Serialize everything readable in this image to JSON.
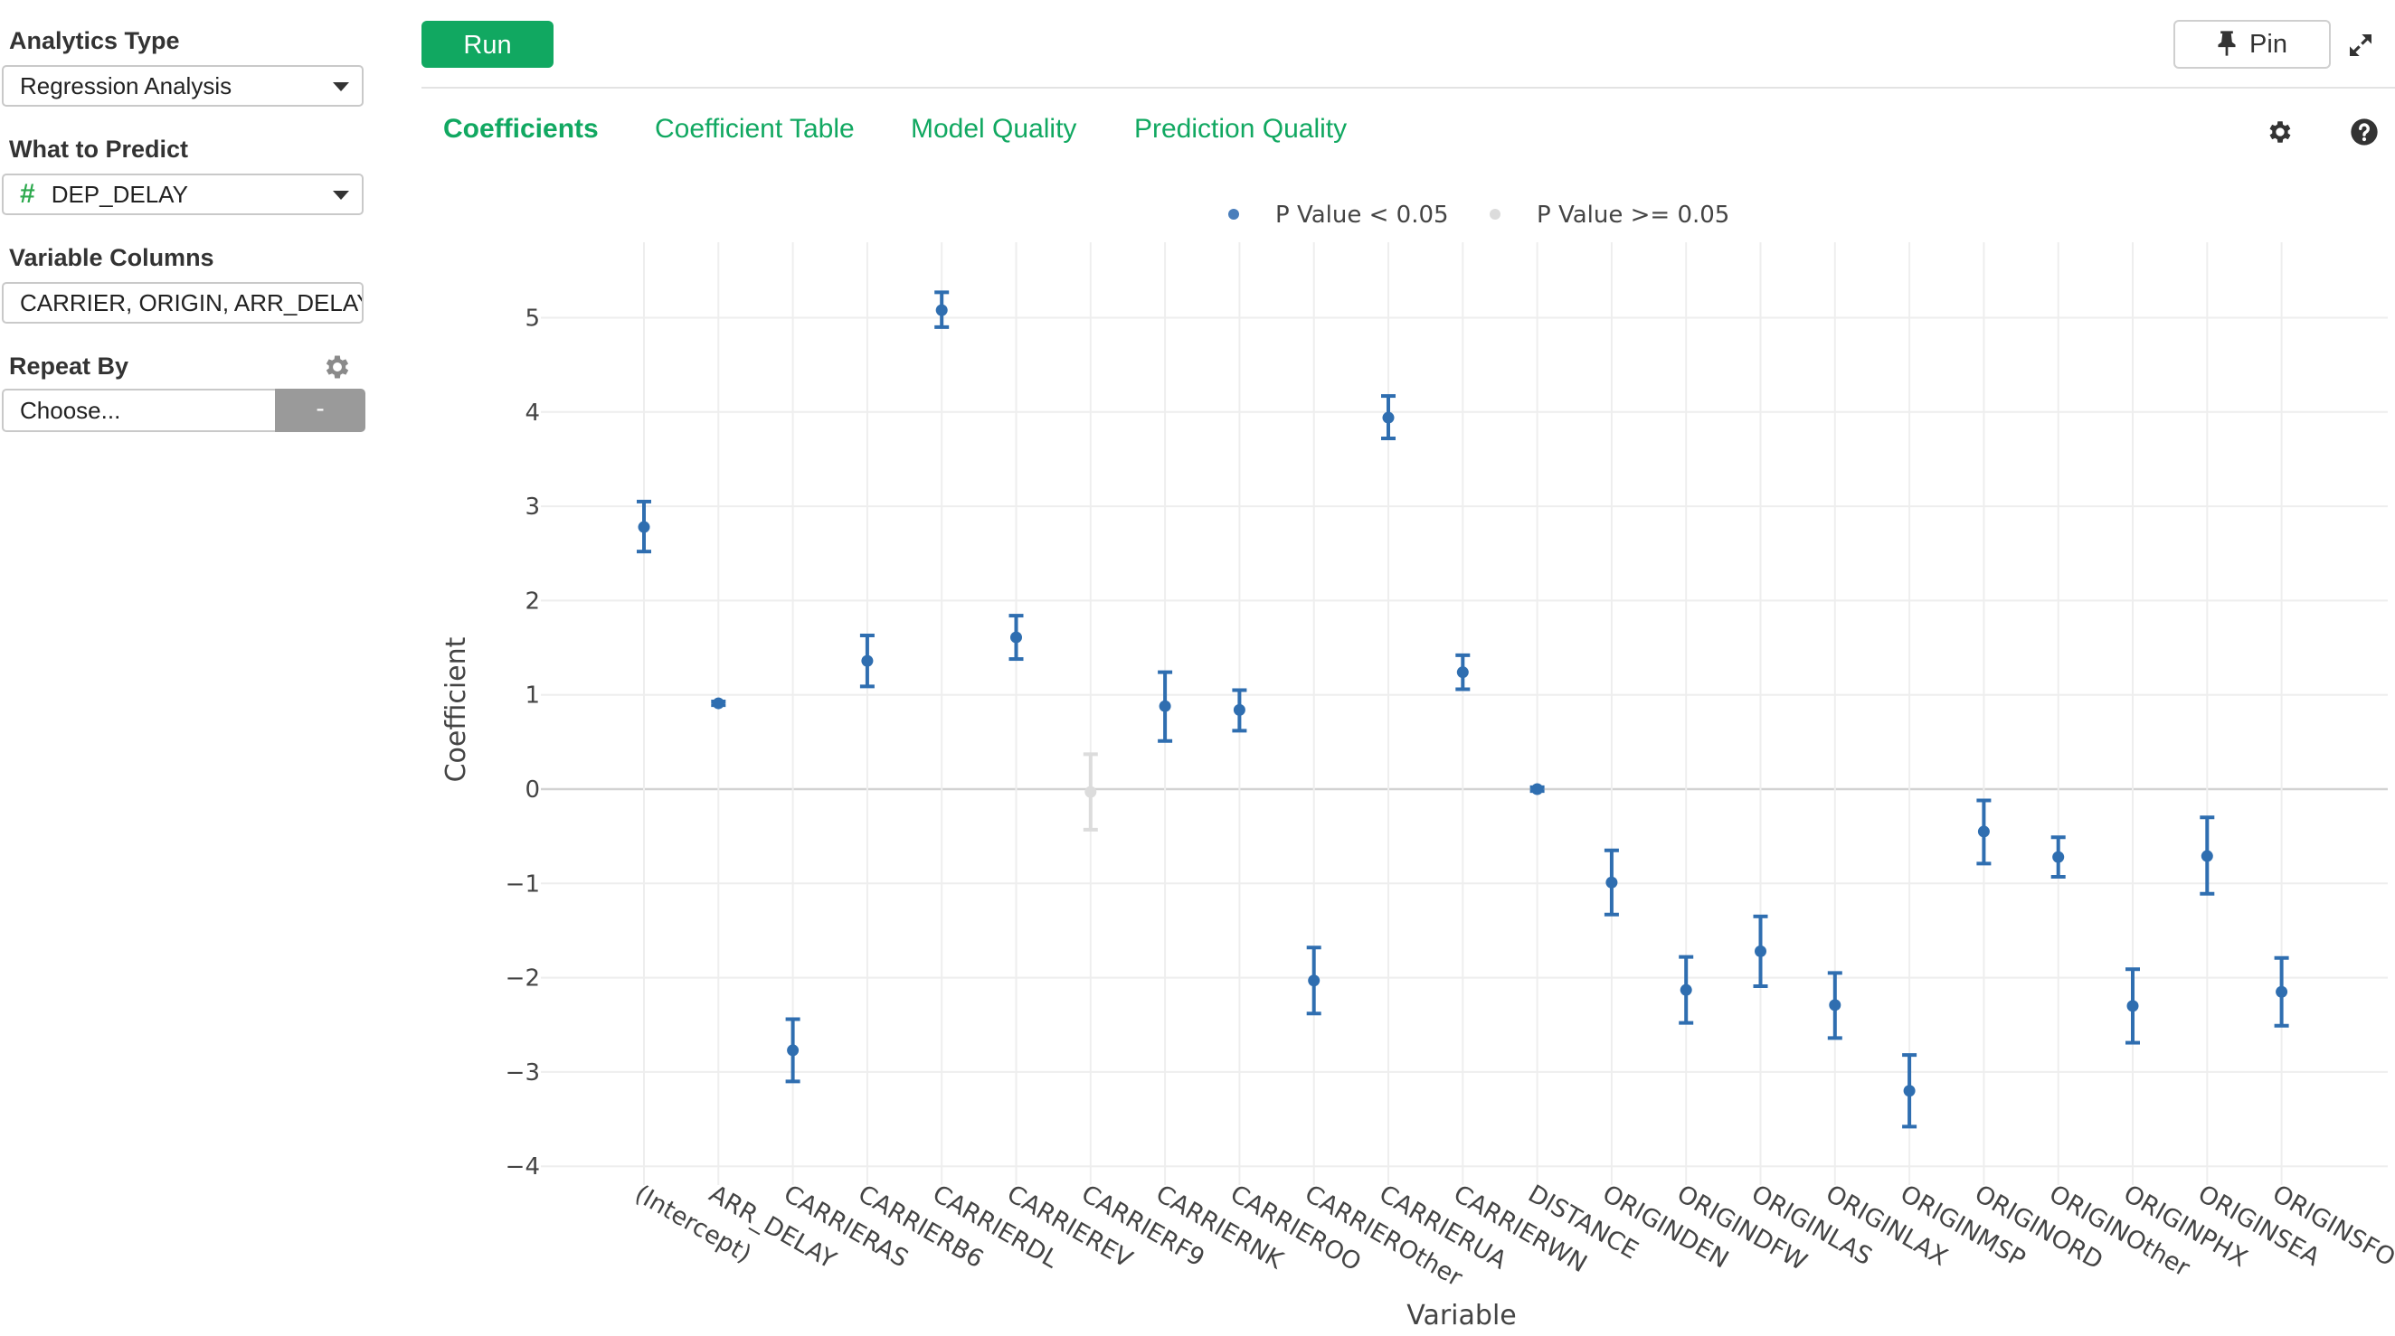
{
  "sidebar": {
    "analytics_type_label": "Analytics Type",
    "analytics_type_value": "Regression Analysis",
    "predict_label": "What to Predict",
    "predict_value": "DEP_DELAY",
    "variable_columns_label": "Variable Columns",
    "variable_columns_value": "CARRIER, ORIGIN, ARR_DELAY",
    "repeat_by_label": "Repeat By",
    "repeat_by_placeholder": "Choose...",
    "repeat_by_button": "-"
  },
  "toolbar": {
    "run_label": "Run",
    "pin_label": "Pin"
  },
  "tabs": [
    {
      "label": "Coefficients",
      "active": true
    },
    {
      "label": "Coefficient Table",
      "active": false
    },
    {
      "label": "Model Quality",
      "active": false
    },
    {
      "label": "Prediction Quality",
      "active": false
    }
  ],
  "colors": {
    "accent": "#11a861",
    "significant": "#2f6eb0",
    "significant_legend": "#4a7ebb",
    "not_significant": "#dcdcdc"
  },
  "icons": [
    "gear-icon",
    "pin-icon",
    "expand-icon",
    "help-icon",
    "chevron-down-icon"
  ],
  "chart_data": {
    "type": "scatter",
    "xlabel": "Variable",
    "ylabel": "Coefficient",
    "ylim": [
      -4.2,
      5.8
    ],
    "yticks": [
      -4,
      -3,
      -2,
      -1,
      0,
      1,
      2,
      3,
      4,
      5
    ],
    "ytick_labels": [
      "−4",
      "−3",
      "−2",
      "−1",
      "0",
      "1",
      "2",
      "3",
      "4",
      "5"
    ],
    "grid": true,
    "legend": {
      "placement": "top-center",
      "items": [
        {
          "label": "P Value < 0.05",
          "significant": true
        },
        {
          "label": "P Value >= 0.05",
          "significant": false
        }
      ]
    },
    "categories": [
      "(Intercept)",
      "ARR_DELAY",
      "CARRIERAS",
      "CARRIERB6",
      "CARRIERDL",
      "CARRIEREV",
      "CARRIERF9",
      "CARRIERNK",
      "CARRIEROO",
      "CARRIEROther",
      "CARRIERUA",
      "CARRIERWN",
      "DISTANCE",
      "ORIGINDEN",
      "ORIGINDFW",
      "ORIGINLAS",
      "ORIGINLAX",
      "ORIGINMSP",
      "ORIGINORD",
      "ORIGINOther",
      "ORIGINPHX",
      "ORIGINSEA",
      "ORIGINSFO"
    ],
    "points": [
      {
        "x": "(Intercept)",
        "y": 2.78,
        "lo": 2.52,
        "hi": 3.05,
        "significant": true
      },
      {
        "x": "ARR_DELAY",
        "y": 0.91,
        "lo": 0.89,
        "hi": 0.93,
        "significant": true
      },
      {
        "x": "CARRIERAS",
        "y": -2.77,
        "lo": -3.1,
        "hi": -2.44,
        "significant": true
      },
      {
        "x": "CARRIERB6",
        "y": 1.36,
        "lo": 1.09,
        "hi": 1.63,
        "significant": true
      },
      {
        "x": "CARRIERDL",
        "y": 5.08,
        "lo": 4.9,
        "hi": 5.27,
        "significant": true
      },
      {
        "x": "CARRIEREV",
        "y": 1.61,
        "lo": 1.38,
        "hi": 1.84,
        "significant": true
      },
      {
        "x": "CARRIERF9",
        "y": -0.03,
        "lo": -0.43,
        "hi": 0.37,
        "significant": false
      },
      {
        "x": "CARRIERNK",
        "y": 0.88,
        "lo": 0.51,
        "hi": 1.24,
        "significant": true
      },
      {
        "x": "CARRIEROO",
        "y": 0.84,
        "lo": 0.62,
        "hi": 1.05,
        "significant": true
      },
      {
        "x": "CARRIEROther",
        "y": -2.03,
        "lo": -2.38,
        "hi": -1.68,
        "significant": true
      },
      {
        "x": "CARRIERUA",
        "y": 3.94,
        "lo": 3.72,
        "hi": 4.17,
        "significant": true
      },
      {
        "x": "CARRIERWN",
        "y": 1.24,
        "lo": 1.06,
        "hi": 1.42,
        "significant": true
      },
      {
        "x": "DISTANCE",
        "y": 0.0,
        "lo": -0.02,
        "hi": 0.02,
        "significant": true
      },
      {
        "x": "ORIGINDEN",
        "y": -0.99,
        "lo": -1.33,
        "hi": -0.65,
        "significant": true
      },
      {
        "x": "ORIGINDFW",
        "y": -2.13,
        "lo": -2.48,
        "hi": -1.78,
        "significant": true
      },
      {
        "x": "ORIGINLAS",
        "y": -1.72,
        "lo": -2.09,
        "hi": -1.35,
        "significant": true
      },
      {
        "x": "ORIGINLAX",
        "y": -2.29,
        "lo": -2.64,
        "hi": -1.95,
        "significant": true
      },
      {
        "x": "ORIGINMSP",
        "y": -3.2,
        "lo": -3.58,
        "hi": -2.82,
        "significant": true
      },
      {
        "x": "ORIGINORD",
        "y": -0.45,
        "lo": -0.79,
        "hi": -0.12,
        "significant": true
      },
      {
        "x": "ORIGINOther",
        "y": -0.72,
        "lo": -0.93,
        "hi": -0.51,
        "significant": true
      },
      {
        "x": "ORIGINPHX",
        "y": -2.3,
        "lo": -2.69,
        "hi": -1.91,
        "significant": true
      },
      {
        "x": "ORIGINSEA",
        "y": -0.71,
        "lo": -1.11,
        "hi": -0.3,
        "significant": true
      },
      {
        "x": "ORIGINSFO",
        "y": -2.15,
        "lo": -2.51,
        "hi": -1.79,
        "significant": true
      }
    ]
  }
}
